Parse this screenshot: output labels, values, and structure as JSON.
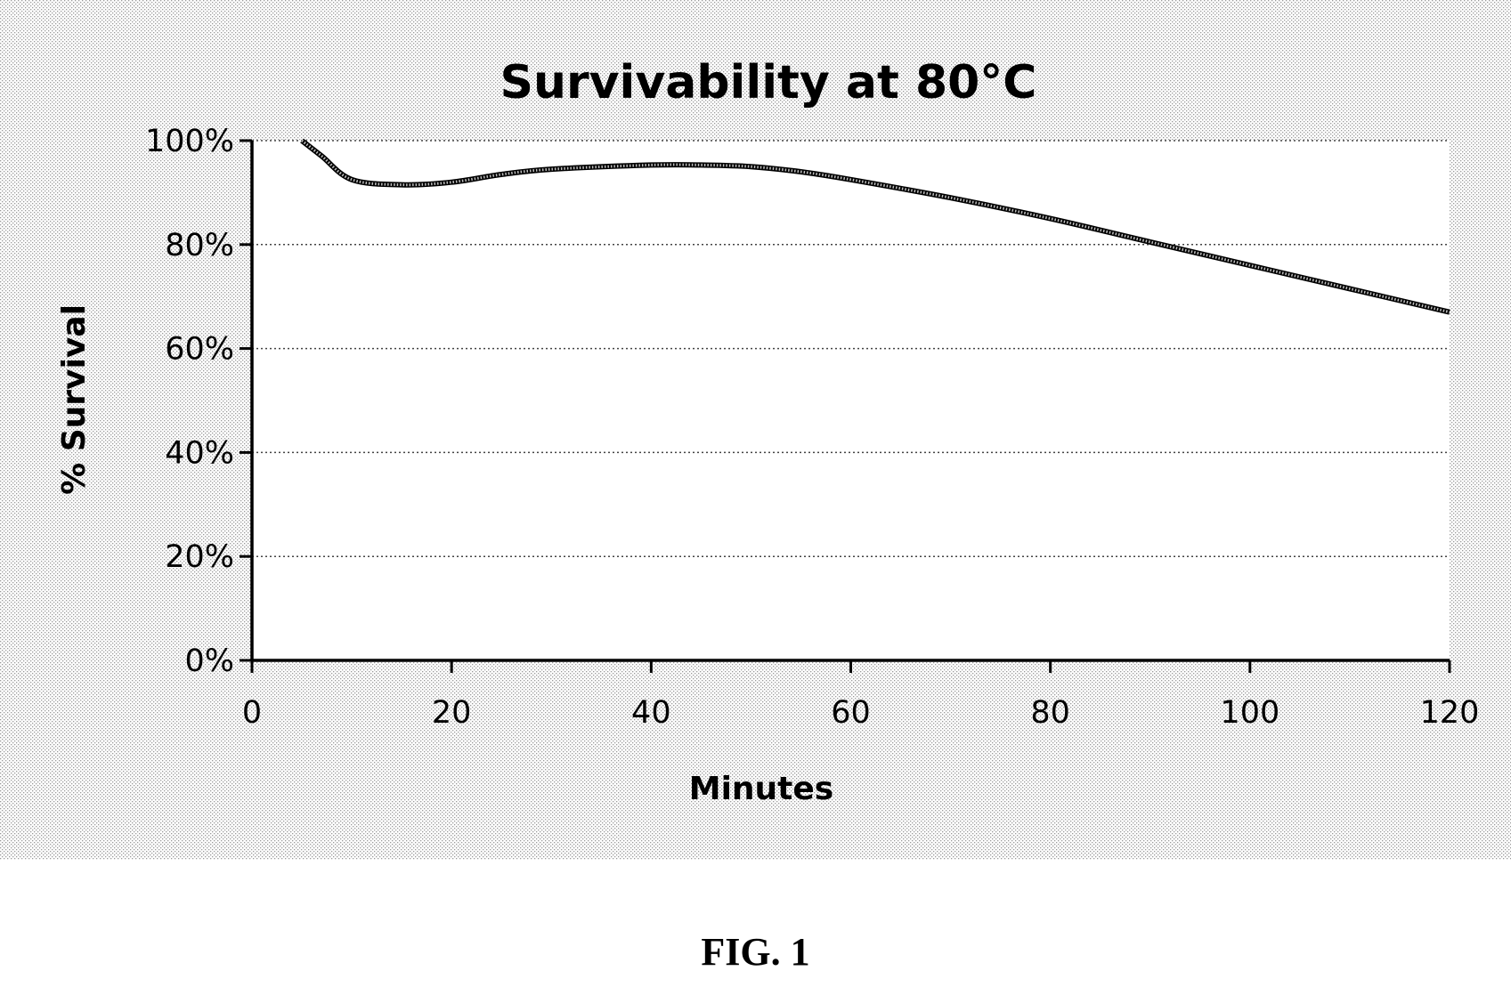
{
  "figure": {
    "caption": "FIG. 1"
  },
  "chart_data": {
    "type": "line",
    "title": "Survivability at 80°C",
    "xlabel": "Minutes",
    "ylabel": "% Survival",
    "xlim": [
      0,
      120
    ],
    "ylim": [
      0,
      100
    ],
    "x_ticks": [
      "0",
      "20",
      "40",
      "60",
      "80",
      "100",
      "120"
    ],
    "y_ticks": [
      "0%",
      "20%",
      "40%",
      "60%",
      "80%",
      "100%"
    ],
    "grid": "horizontal dotted",
    "legend": "none",
    "background": "dotted",
    "series": [
      {
        "x": [
          5,
          7,
          10,
          15,
          20,
          25,
          30,
          40,
          45,
          50,
          55,
          60,
          70,
          80,
          90,
          100,
          110,
          120
        ],
        "values": [
          100,
          97,
          92.5,
          91.5,
          92,
          93.5,
          94.5,
          95.3,
          95.3,
          95,
          94,
          92.5,
          89,
          85,
          80.5,
          76,
          71.5,
          67
        ]
      }
    ]
  }
}
